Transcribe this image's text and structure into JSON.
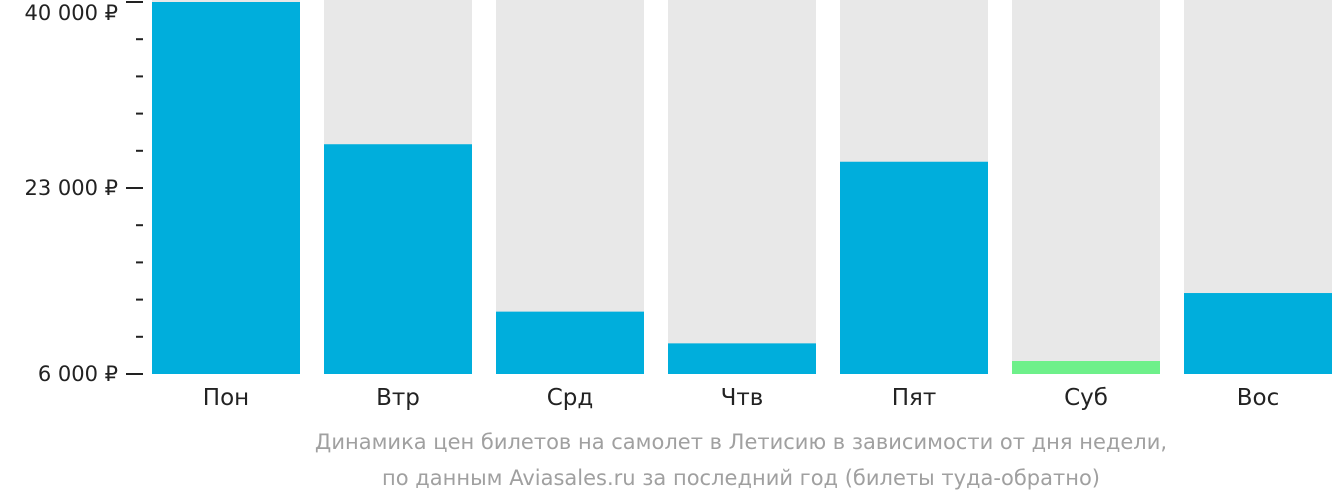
{
  "chart_data": {
    "type": "bar",
    "categories": [
      "Пон",
      "Втр",
      "Срд",
      "Чтв",
      "Пят",
      "Суб",
      "Вос"
    ],
    "values": [
      40000,
      27000,
      11700,
      8800,
      25400,
      6000,
      13400
    ],
    "ylim": [
      6000,
      40000
    ],
    "yticks": [
      {
        "value": 40000,
        "label": "40 000 ₽"
      },
      {
        "value": 23000,
        "label": "23 000 ₽"
      },
      {
        "value": 6000,
        "label": "6 000 ₽"
      }
    ],
    "minor_tick_step": 3400,
    "highlight_index": 5,
    "colors": {
      "bar": "#00AEDC",
      "highlight": "#6EF08A",
      "background_bar": "#E8E8E8",
      "axis": "#222222"
    }
  },
  "caption": {
    "line1": "Динамика цен билетов на самолет в Летисию в зависимости от дня недели,",
    "line2": "по данным Aviasales.ru за последний год (билеты туда-обратно)"
  }
}
